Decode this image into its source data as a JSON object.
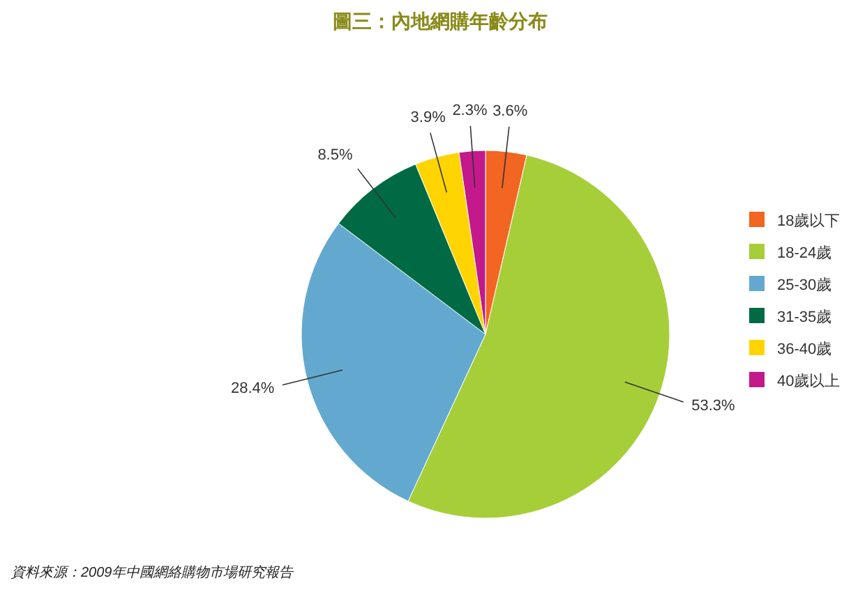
{
  "chart_data": {
    "type": "pie",
    "title": "圖三：內地網購年齡分布",
    "categories": [
      "18歲以下",
      "18-24歲",
      "25-30歲",
      "31-35歲",
      "36-40歲",
      "40歲以上"
    ],
    "values": [
      3.6,
      53.3,
      28.4,
      8.5,
      3.9,
      2.3
    ],
    "colors": [
      "#f26522",
      "#a6ce39",
      "#63a9cf",
      "#006a45",
      "#ffd400",
      "#c4198a"
    ],
    "value_labels": [
      "3.6%",
      "53.3%",
      "28.4%",
      "8.5%",
      "3.9%",
      "2.3%"
    ],
    "legend": "right",
    "annotations": [
      "資料來源：2009年中國網絡購物市場研究報告"
    ]
  }
}
